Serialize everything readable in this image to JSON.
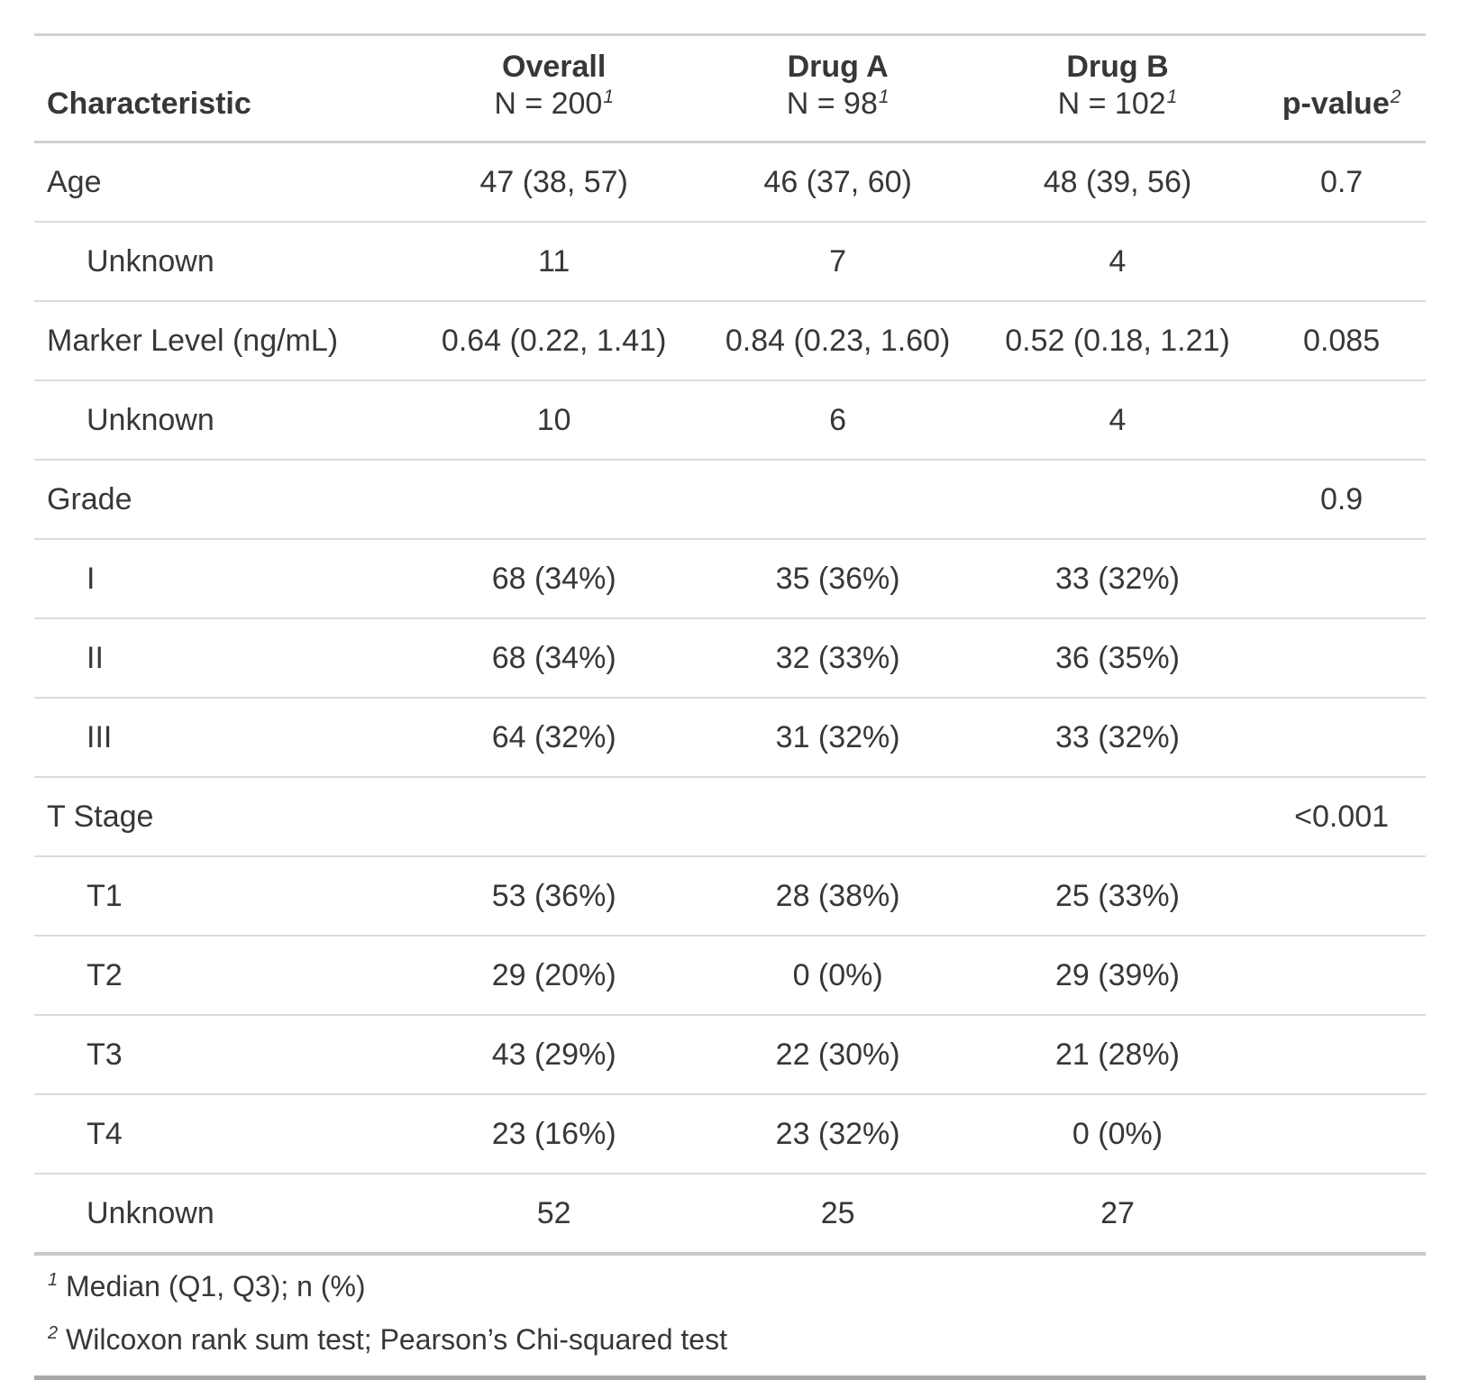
{
  "page": {
    "background": "#ffffff"
  },
  "colors": {
    "text": "#373737",
    "table_top_border": "#d2d2d2",
    "header_bottom_border": "#d2d2d2",
    "row_border": "#dbdbdb",
    "body_bottom_border": "#c9c9c9",
    "table_bottom_border": "#a8a8a8"
  },
  "chart_data": {
    "type": "table",
    "columns": [
      {
        "label": "Characteristic",
        "sublabel": "",
        "footnote_mark": "",
        "align": "left"
      },
      {
        "label": "Overall",
        "sublabel": "N = 200",
        "footnote_mark": "1",
        "align": "center"
      },
      {
        "label": "Drug A",
        "sublabel": "N = 98",
        "footnote_mark": "1",
        "align": "center"
      },
      {
        "label": "Drug B",
        "sublabel": "N = 102",
        "footnote_mark": "1",
        "align": "center"
      },
      {
        "label": "p-value",
        "sublabel": "",
        "footnote_mark": "2",
        "align": "center"
      }
    ],
    "rows": [
      {
        "label": "Age",
        "indent": false,
        "overall": "47 (38, 57)",
        "drug_a": "46 (37, 60)",
        "drug_b": "48 (39, 56)",
        "p_value": "0.7"
      },
      {
        "label": "Unknown",
        "indent": true,
        "overall": "11",
        "drug_a": "7",
        "drug_b": "4",
        "p_value": ""
      },
      {
        "label": "Marker Level (ng/mL)",
        "indent": false,
        "overall": "0.64 (0.22, 1.41)",
        "drug_a": "0.84 (0.23, 1.60)",
        "drug_b": "0.52 (0.18, 1.21)",
        "p_value": "0.085"
      },
      {
        "label": "Unknown",
        "indent": true,
        "overall": "10",
        "drug_a": "6",
        "drug_b": "4",
        "p_value": ""
      },
      {
        "label": "Grade",
        "indent": false,
        "overall": "",
        "drug_a": "",
        "drug_b": "",
        "p_value": "0.9"
      },
      {
        "label": "I",
        "indent": true,
        "overall": "68 (34%)",
        "drug_a": "35 (36%)",
        "drug_b": "33 (32%)",
        "p_value": ""
      },
      {
        "label": "II",
        "indent": true,
        "overall": "68 (34%)",
        "drug_a": "32 (33%)",
        "drug_b": "36 (35%)",
        "p_value": ""
      },
      {
        "label": "III",
        "indent": true,
        "overall": "64 (32%)",
        "drug_a": "31 (32%)",
        "drug_b": "33 (32%)",
        "p_value": ""
      },
      {
        "label": "T Stage",
        "indent": false,
        "overall": "",
        "drug_a": "",
        "drug_b": "",
        "p_value": "<0.001"
      },
      {
        "label": "T1",
        "indent": true,
        "overall": "53 (36%)",
        "drug_a": "28 (38%)",
        "drug_b": "25 (33%)",
        "p_value": ""
      },
      {
        "label": "T2",
        "indent": true,
        "overall": "29 (20%)",
        "drug_a": "0 (0%)",
        "drug_b": "29 (39%)",
        "p_value": ""
      },
      {
        "label": "T3",
        "indent": true,
        "overall": "43 (29%)",
        "drug_a": "22 (30%)",
        "drug_b": "21 (28%)",
        "p_value": ""
      },
      {
        "label": "T4",
        "indent": true,
        "overall": "23 (16%)",
        "drug_a": "23 (32%)",
        "drug_b": "0 (0%)",
        "p_value": ""
      },
      {
        "label": "Unknown",
        "indent": true,
        "overall": "52",
        "drug_a": "25",
        "drug_b": "27",
        "p_value": ""
      }
    ],
    "footnotes": [
      {
        "mark": "1",
        "text": "Median (Q1, Q3); n (%)"
      },
      {
        "mark": "2",
        "text": "Wilcoxon rank sum test; Pearson’s Chi-squared test"
      }
    ]
  }
}
